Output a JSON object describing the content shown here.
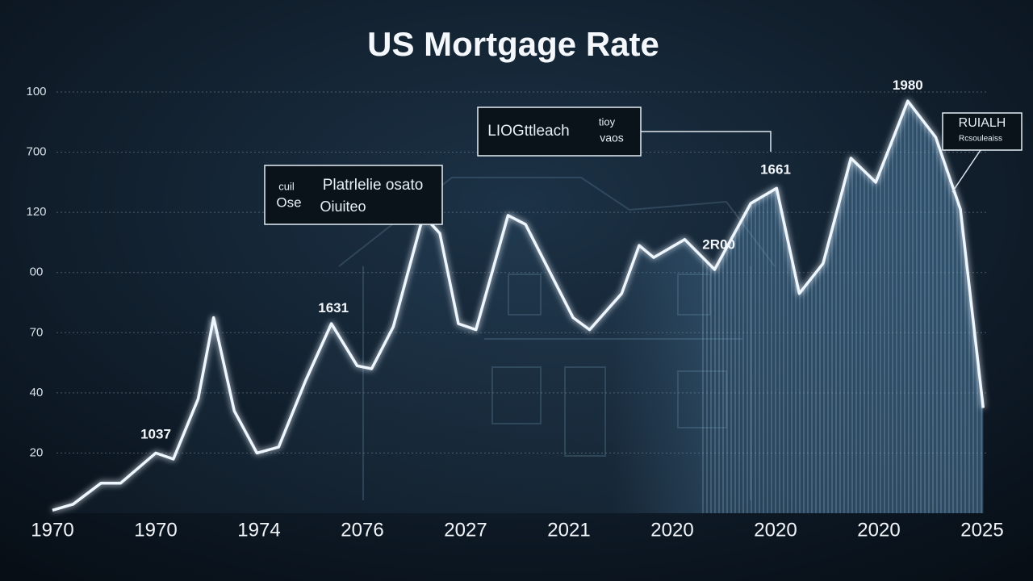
{
  "chart_data": {
    "type": "line",
    "title": "US Mortgage Rate",
    "x": [
      0,
      0.2,
      0.47,
      0.66,
      1,
      1.17,
      1.41,
      1.56,
      1.76,
      1.98,
      2.19,
      2.45,
      2.7,
      2.95,
      3.09,
      3.3,
      3.59,
      3.75,
      3.93,
      4.1,
      4.41,
      4.58,
      5.04,
      5.2,
      5.51,
      5.68,
      5.82,
      6.12,
      6.41,
      6.76,
      7.01,
      7.23,
      7.46,
      7.73,
      7.97,
      8.28,
      8.55,
      8.79,
      9.01
    ],
    "series": [
      {
        "color": "#eef6ff",
        "values": [
          1,
          3,
          10,
          10,
          20,
          18,
          38,
          65,
          34,
          20,
          22,
          44,
          63,
          49,
          48,
          62,
          99,
          93,
          63,
          61,
          99,
          96,
          65,
          61,
          73,
          89,
          85,
          91,
          81,
          103,
          108,
          73,
          83,
          118,
          110,
          137,
          125,
          101,
          35
        ]
      }
    ],
    "xlim": [
      0,
      9
    ],
    "xticks": [
      {
        "value": 0,
        "label": "1970"
      },
      {
        "value": 1,
        "label": "1970"
      },
      {
        "value": 2,
        "label": "1974"
      },
      {
        "value": 3,
        "label": "2076"
      },
      {
        "value": 4,
        "label": "2027"
      },
      {
        "value": 5,
        "label": "2021"
      },
      {
        "value": 6,
        "label": "2020"
      },
      {
        "value": 7,
        "label": "2020"
      },
      {
        "value": 8,
        "label": "2020"
      },
      {
        "value": 9,
        "label": "2025"
      }
    ],
    "ylim": [
      0,
      140
    ],
    "yticks": [
      20,
      40,
      {
        "value": 60,
        "label": "70"
      },
      {
        "value": 80,
        "label": "00"
      },
      {
        "value": 100,
        "label": "120"
      },
      {
        "value": 120,
        "label": "700"
      },
      {
        "value": 140,
        "label": "100"
      }
    ],
    "grid": true,
    "annotations": [
      {
        "text": "1037",
        "x": 1,
        "y": 26
      },
      {
        "text": "1631",
        "x": 2.72,
        "y": 68
      },
      {
        "text": "2R00",
        "x": 6.45,
        "y": 89
      },
      {
        "text": "1661",
        "x": 7,
        "y": 114
      },
      {
        "text": "1980",
        "x": 8.28,
        "y": 142
      }
    ],
    "callouts": [
      {
        "texts": [
          "cuil",
          "Ose",
          "Platrlelie osato",
          "Oiuiteo"
        ]
      },
      {
        "texts": [
          "LIOGttleach",
          "tioy",
          "vaos"
        ]
      },
      {
        "texts": [
          "RUIALH",
          "Rcsouleaiss"
        ]
      }
    ]
  }
}
